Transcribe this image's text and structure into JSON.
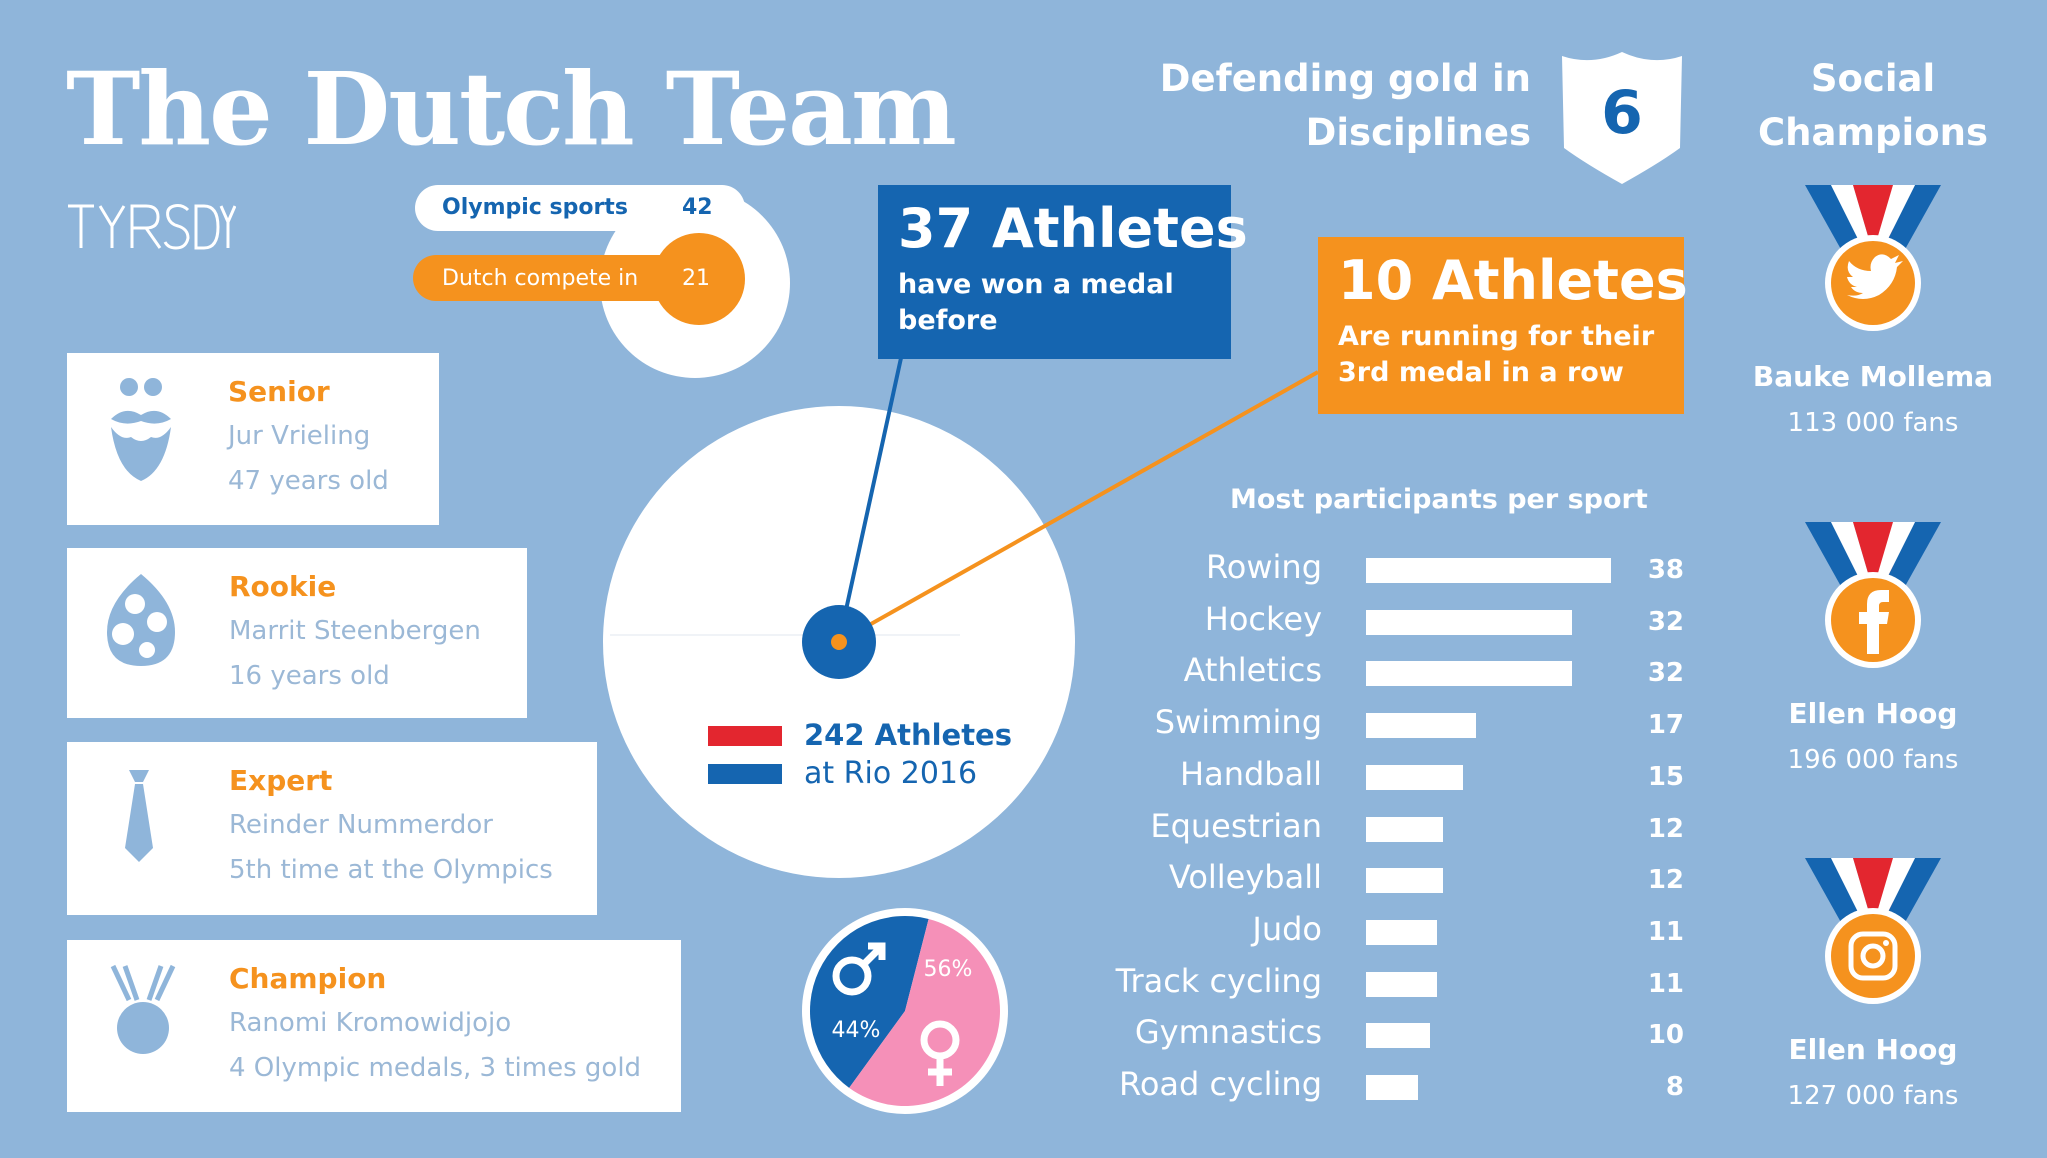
{
  "title": "The Dutch Team",
  "logo": "TYRSDAY",
  "olympic": {
    "sports_label": "Olympic sports",
    "sports_value": "42",
    "compete_label": "Dutch compete in",
    "compete_value": "21"
  },
  "cards": [
    {
      "title": "Senior",
      "name": "Jur Vrieling",
      "detail": "47 years old",
      "icon": "mustache-beard-icon"
    },
    {
      "title": "Rookie",
      "name": "Marrit Steenbergen",
      "detail": "16 years old",
      "icon": "egg-icon"
    },
    {
      "title": "Expert",
      "name": "Reinder Nummerdor",
      "detail": "5th time at the Olympics",
      "icon": "tie-icon"
    },
    {
      "title": "Champion",
      "name": "Ranomi Kromowidjojo",
      "detail": "4 Olympic medals, 3 times gold",
      "icon": "medal-icon"
    }
  ],
  "blue_box": {
    "big": "37 Athletes",
    "line1": "have won a medal",
    "line2": "before"
  },
  "orange_box": {
    "big": "10 Athletes",
    "line1": "Are running for their",
    "line2": "3rd medal in a row"
  },
  "defending": {
    "line1": "Defending gold in",
    "line2": "Disciplines",
    "value": "6"
  },
  "center": {
    "line1": "242 Athletes",
    "line2": "at Rio 2016"
  },
  "gender": {
    "male_pct": "44%",
    "female_pct": "56%",
    "male": 44,
    "female": 56
  },
  "social": {
    "title_line1": "Social",
    "title_line2": "Champions",
    "entries": [
      {
        "name": "Bauke Mollema",
        "fans": "113 000 fans",
        "icon": "twitter-icon"
      },
      {
        "name": "Ellen Hoog",
        "fans": "196 000 fans",
        "icon": "facebook-icon"
      },
      {
        "name": "Ellen Hoog",
        "fans": "127 000 fans",
        "icon": "instagram-icon"
      }
    ]
  },
  "colors": {
    "blue": "#1565b0",
    "orange": "#f5921e",
    "background": "#8fb5da",
    "pink": "#f590b8",
    "red": "#e3262f"
  },
  "chart_data": [
    {
      "type": "bar",
      "title": "Most participants per sport",
      "categories": [
        "Rowing",
        "Hockey",
        "Athletics",
        "Swimming",
        "Handball",
        "Equestrian",
        "Volleyball",
        "Judo",
        "Track cycling",
        "Gymnastics",
        "Road cycling"
      ],
      "values": [
        38,
        32,
        32,
        17,
        15,
        12,
        12,
        11,
        11,
        10,
        8
      ],
      "orientation": "horizontal"
    },
    {
      "type": "pie",
      "categories": [
        "male",
        "female"
      ],
      "values": [
        44,
        56
      ]
    }
  ]
}
